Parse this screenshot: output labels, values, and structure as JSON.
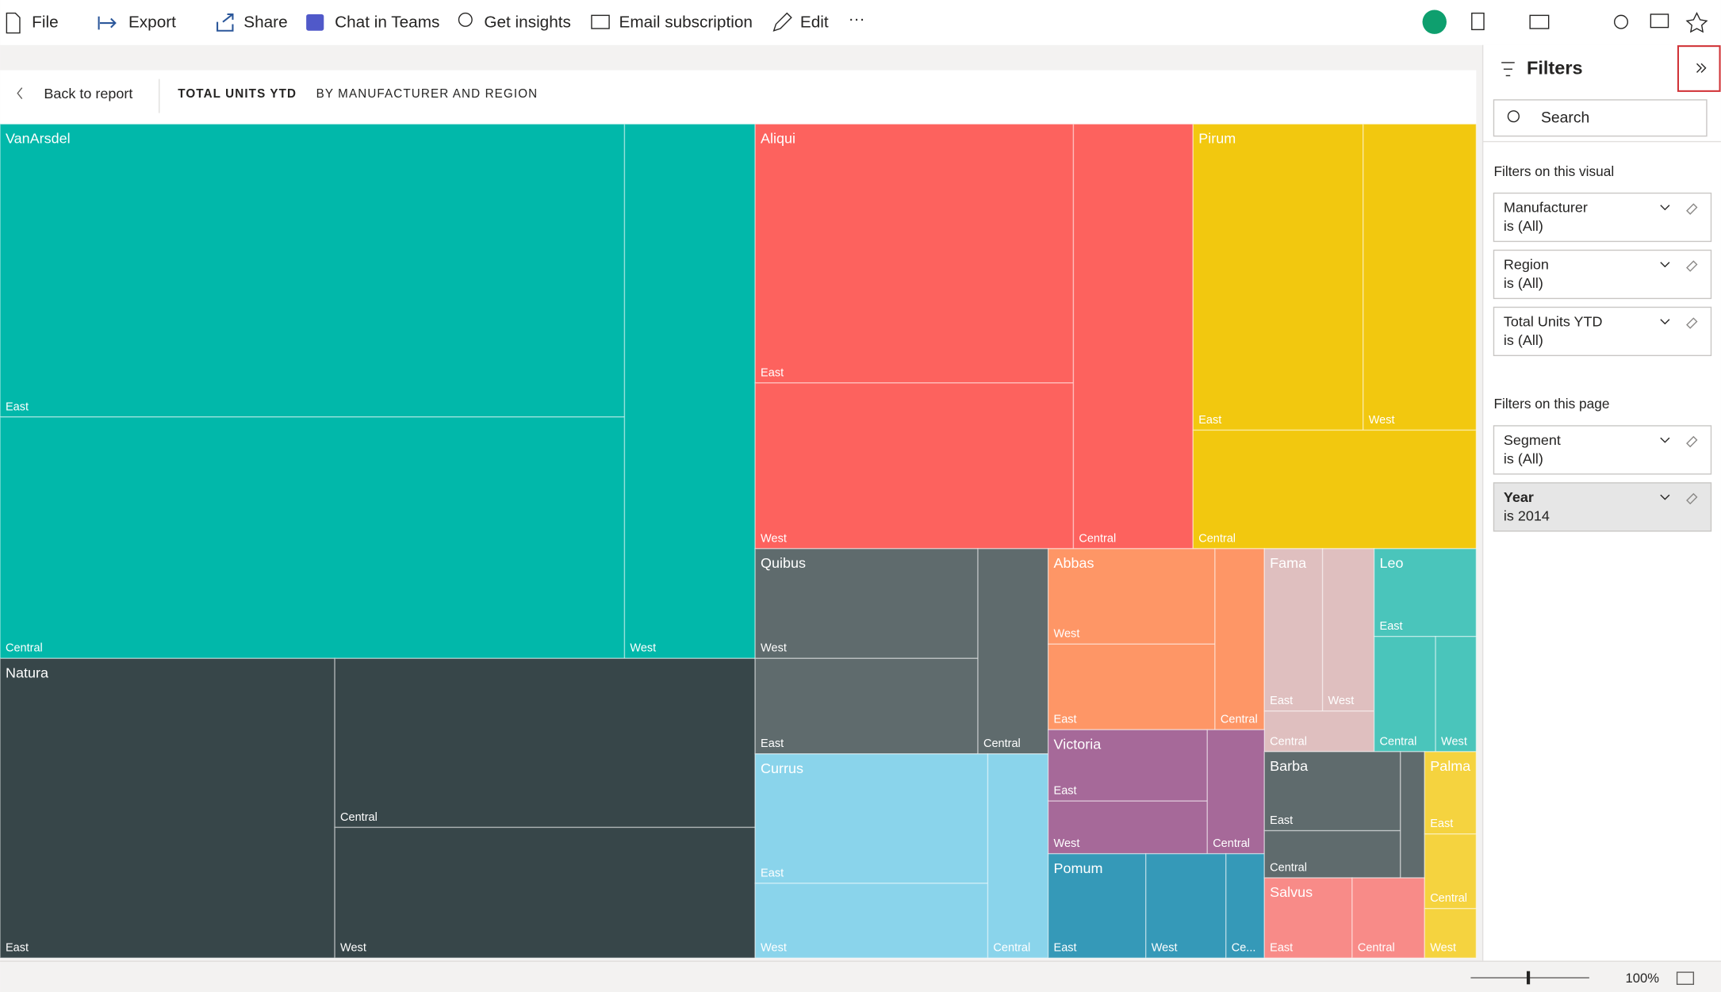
{
  "toolbar": {
    "items": [
      "File",
      "Export",
      "Share",
      "Chat in Teams",
      "Get insights",
      "Email subscription",
      "Edit"
    ]
  },
  "header": {
    "back": "Back to report",
    "title": "TOTAL UNITS YTD",
    "subtitle": "BY MANUFACTURER AND REGION"
  },
  "treemap": {
    "groups": [
      {
        "name": "VanArsdel",
        "color": "#01b8aa",
        "regions": [
          "East",
          "Central",
          "West"
        ]
      },
      {
        "name": "Natura",
        "color": "#374649",
        "regions": [
          "East",
          "Central",
          "West"
        ]
      },
      {
        "name": "Aliqui",
        "color": "#fd625e",
        "regions": [
          "East",
          "West",
          "Central"
        ]
      },
      {
        "name": "Pirum",
        "color": "#f2c80f",
        "regions": [
          "East",
          "West",
          "Central"
        ]
      },
      {
        "name": "Quibus",
        "color": "#5f6b6d",
        "regions": [
          "West",
          "East",
          "Central"
        ]
      },
      {
        "name": "Abbas",
        "color": "#fe9666",
        "regions": [
          "West",
          "East",
          "Central"
        ]
      },
      {
        "name": "Fama",
        "color": "#dfbfbf",
        "regions": [
          "East",
          "West",
          "Central"
        ]
      },
      {
        "name": "Leo",
        "color": "#4ac5bb",
        "regions": [
          "East",
          "Central",
          "West"
        ]
      },
      {
        "name": "Currus",
        "color": "#8ad4eb",
        "regions": [
          "East",
          "West",
          "Central"
        ]
      },
      {
        "name": "Victoria",
        "color": "#a66999",
        "regions": [
          "East",
          "West",
          "Central"
        ]
      },
      {
        "name": "Pomum",
        "color": "#3599b8",
        "regions": [
          "East",
          "West",
          "Ce..."
        ]
      },
      {
        "name": "Barba",
        "color": "#5f6b6d",
        "regions": [
          "East",
          "Central",
          null
        ]
      },
      {
        "name": "Salvus",
        "color": "#f88b88",
        "regions": [
          "East",
          "Central"
        ]
      },
      {
        "name": "Palma",
        "color": "#f5d33f",
        "regions": [
          "East",
          "Central",
          "West"
        ]
      }
    ]
  },
  "filters": {
    "title": "Filters",
    "search": "Search",
    "visual_section": "Filters on this visual",
    "visual": [
      {
        "name": "Manufacturer",
        "state": "is (All)"
      },
      {
        "name": "Region",
        "state": "is (All)"
      },
      {
        "name": "Total Units YTD",
        "state": "is (All)"
      }
    ],
    "page_section": "Filters on this page",
    "page": [
      {
        "name": "Segment",
        "state": "is (All)"
      },
      {
        "name": "Year",
        "state": "is 2014"
      }
    ]
  },
  "status": {
    "zoom": "100%"
  }
}
